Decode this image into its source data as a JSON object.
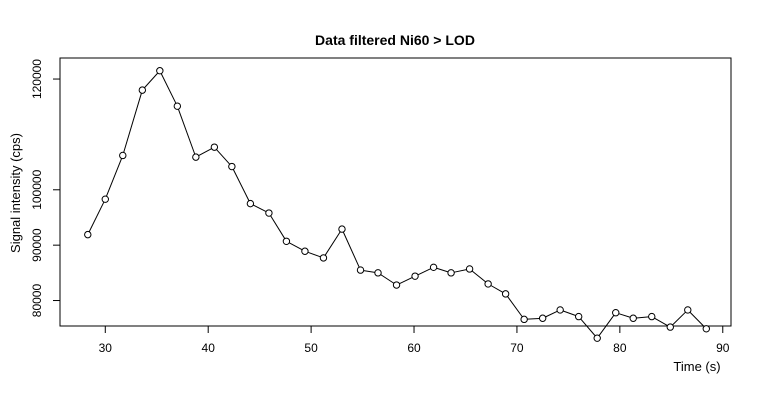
{
  "chart_data": {
    "type": "line",
    "title": "Data filtered Ni60 > LOD",
    "xlabel": "Time (s)",
    "ylabel": "Signal intensity (cps)",
    "xlim": [
      25.6,
      90.8
    ],
    "ylim": [
      75400,
      123800
    ],
    "x_ticks": [
      30,
      40,
      50,
      60,
      70,
      80,
      90
    ],
    "y_ticks": [
      80000,
      90000,
      100000,
      120000
    ],
    "grid": false,
    "markers": "open-circle",
    "series": [
      {
        "x": [
          28.3,
          30.0,
          31.7,
          33.6,
          35.3,
          37.0,
          38.8,
          40.6,
          42.3,
          44.1,
          45.9,
          47.6,
          49.4,
          51.2,
          53.0,
          54.8,
          56.5,
          58.3,
          60.1,
          61.9,
          63.6,
          65.4,
          67.2,
          68.9,
          70.7,
          72.5,
          74.2,
          76.0,
          77.8,
          79.6,
          81.3,
          83.1,
          84.9,
          86.6,
          88.4
        ],
        "values": [
          91900,
          98300,
          106200,
          118000,
          121500,
          115100,
          105900,
          107700,
          104200,
          97500,
          95800,
          90700,
          88900,
          87700,
          92900,
          85500,
          85000,
          82800,
          84400,
          86000,
          85000,
          85700,
          83000,
          81200,
          76600,
          76800,
          78300,
          77100,
          73200,
          77800,
          76800,
          77100,
          75200,
          78300,
          74900
        ]
      }
    ]
  }
}
